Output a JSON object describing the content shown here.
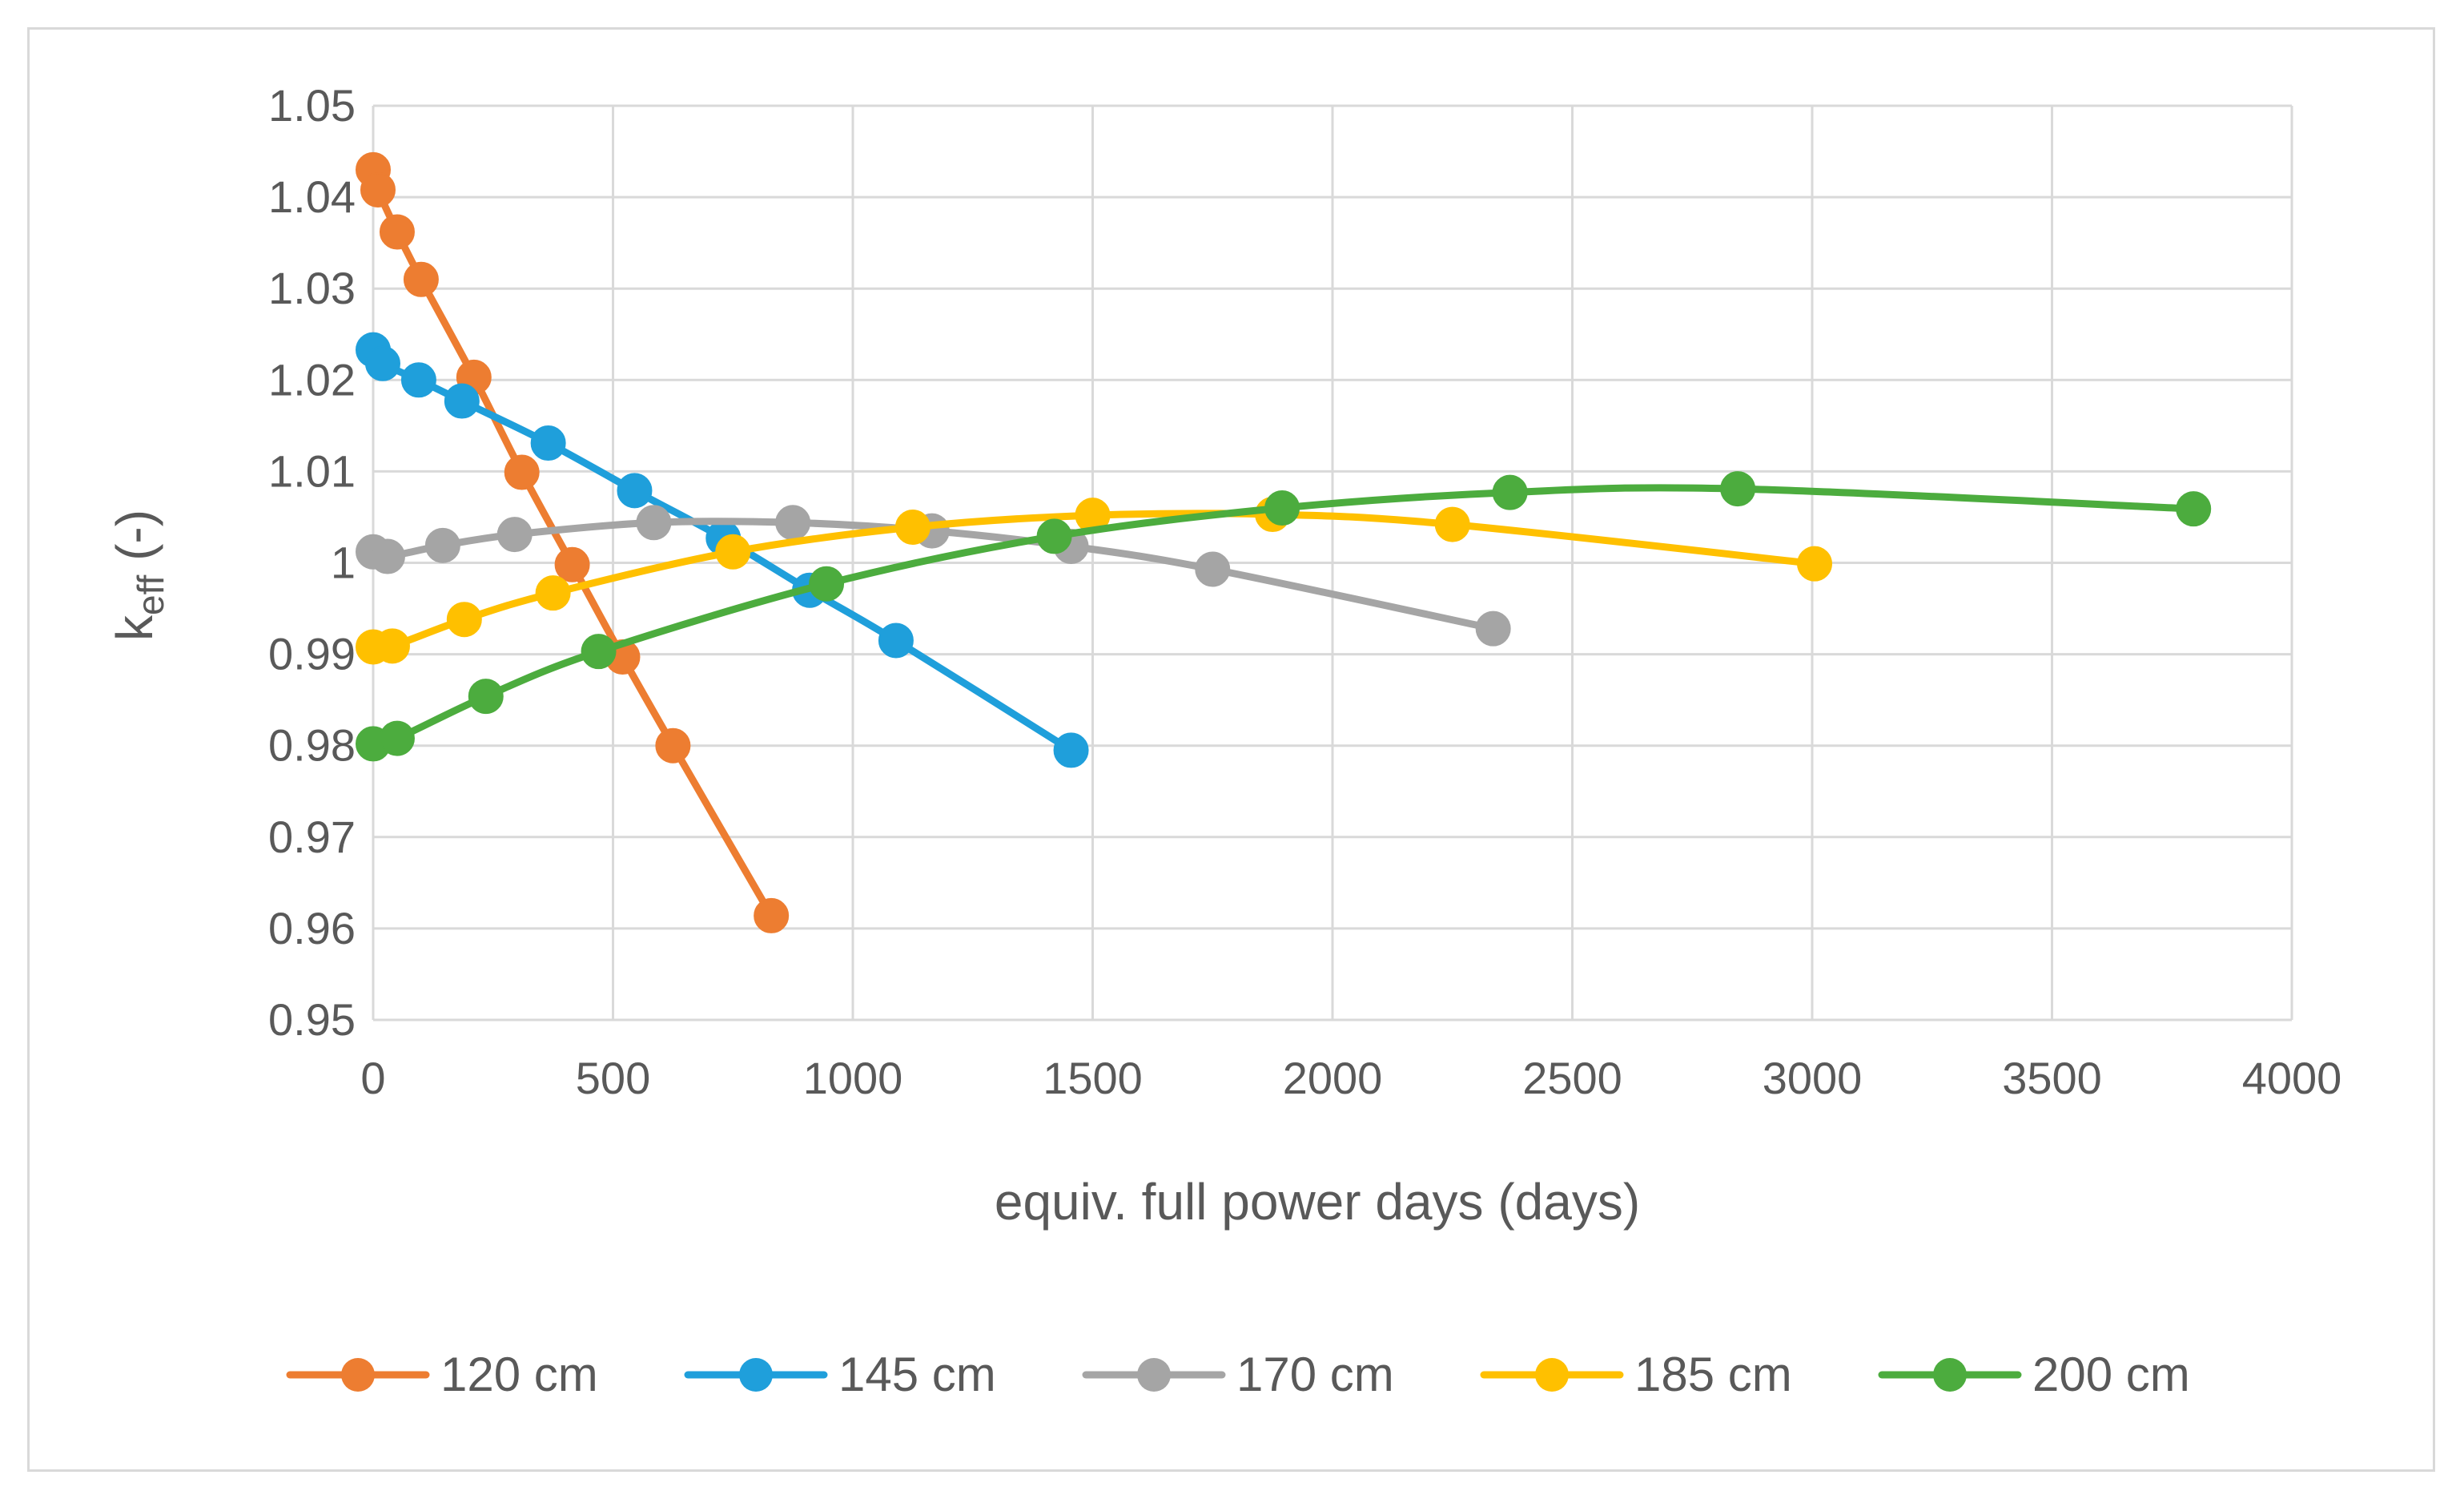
{
  "chart_data": {
    "type": "line",
    "title": "",
    "xlabel": "equiv. full power days (days)",
    "ylabel_main": "k",
    "ylabel_sub": "eff",
    "ylabel_tail": " (-)",
    "xlim": [
      0,
      4000
    ],
    "ylim": [
      0.95,
      1.05
    ],
    "x_ticks": [
      0,
      500,
      1000,
      1500,
      2000,
      2500,
      3000,
      3500,
      4000
    ],
    "x_tick_labels": [
      "0",
      "500",
      "1000",
      "1500",
      "2000",
      "2500",
      "3000",
      "3500",
      "4000"
    ],
    "y_ticks": [
      0.95,
      0.96,
      0.97,
      0.98,
      0.99,
      1.0,
      1.01,
      1.02,
      1.03,
      1.04,
      1.05
    ],
    "y_tick_labels": [
      "0.95",
      "0.96",
      "0.97",
      "0.98",
      "0.99",
      "1",
      "1.01",
      "1.02",
      "1.03",
      "1.04",
      "1.05"
    ],
    "grid": true,
    "legend_position": "bottom",
    "series": [
      {
        "name": "120 cm",
        "color": "#ED7D31",
        "x": [
          0,
          10,
          50,
          100,
          210,
          310,
          415,
          520,
          625,
          830
        ],
        "y": [
          1.043,
          1.0408,
          1.0362,
          1.031,
          1.0203,
          1.0099,
          0.9998,
          0.9897,
          0.98,
          0.9614
        ]
      },
      {
        "name": "145 cm",
        "color": "#1F9FDB",
        "x": [
          0,
          20,
          95,
          185,
          365,
          545,
          730,
          910,
          1090,
          1455
        ],
        "y": [
          1.0233,
          1.0218,
          1.02,
          1.0177,
          1.0131,
          1.0079,
          1.0027,
          0.997,
          0.9915,
          0.9795
        ]
      },
      {
        "name": "170 cm",
        "color": "#A5A5A5",
        "x": [
          0,
          30,
          145,
          295,
          585,
          875,
          1165,
          1455,
          1750,
          2335
        ],
        "y": [
          1.0012,
          1.0007,
          1.0019,
          1.0031,
          1.0044,
          1.0044,
          1.0035,
          1.0018,
          0.9993,
          0.9928
        ]
      },
      {
        "name": "185 cm",
        "color": "#FFC000",
        "x": [
          0,
          40,
          190,
          375,
          750,
          1125,
          1500,
          1875,
          2250,
          3005
        ],
        "y": [
          0.9908,
          0.9909,
          0.9938,
          0.9967,
          1.0012,
          1.0039,
          1.0052,
          1.0053,
          1.0042,
          0.9999
        ]
      },
      {
        "name": "200 cm",
        "color": "#4CAC3E",
        "x": [
          0,
          50,
          235,
          470,
          945,
          1420,
          1895,
          2370,
          2845,
          3795
        ],
        "y": [
          0.9802,
          0.9808,
          0.9854,
          0.9903,
          0.9977,
          1.0029,
          1.006,
          1.0077,
          1.0081,
          1.0059
        ]
      }
    ]
  }
}
